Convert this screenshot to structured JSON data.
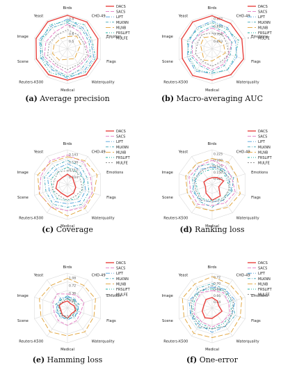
{
  "figure": {
    "legend_entries": [
      "DACS",
      "SACS",
      "LIFT",
      "MLKNN",
      "MLNB",
      "FRSLIFT",
      "MULFE"
    ],
    "axes": [
      "Birds",
      "CHD-49",
      "Emotions",
      "Flags",
      "Waterquality",
      "Medical",
      "Reuters-K500",
      "Scene",
      "Image",
      "Yeast"
    ],
    "axes_short": {
      "Emotions": "Emotion"
    }
  },
  "series_colors": {
    "DACS": "#e8413d",
    "SACS": "#e377c2",
    "LIFT": "#4a9fdc",
    "MLKNN": "#3aa3b5",
    "MLNB": "#e0a033",
    "FRSLIFT": "#22b0a0",
    "MULFE": "#7f7f7f"
  },
  "chart_data": [
    {
      "type": "radar",
      "caption_letter": "(a)",
      "caption_text": "Average precision",
      "rings": [
        "0.8",
        "0.7",
        "0.6",
        "0.5"
      ],
      "axis_label_overrides": {
        "Emotions": "Emotion"
      },
      "series": [
        {
          "name": "DACS",
          "values": [
            0.96,
            0.95,
            0.92,
            0.9,
            0.92,
            0.9,
            0.92,
            0.94,
            0.95,
            0.96
          ]
        },
        {
          "name": "SACS",
          "values": [
            0.7,
            0.6,
            0.55,
            0.65,
            0.6,
            0.7,
            0.6,
            0.7,
            0.65,
            0.6
          ]
        },
        {
          "name": "LIFT",
          "values": [
            0.85,
            0.75,
            0.7,
            0.8,
            0.8,
            0.85,
            0.75,
            0.8,
            0.85,
            0.8
          ]
        },
        {
          "name": "MLKNN",
          "values": [
            0.75,
            0.7,
            0.65,
            0.7,
            0.7,
            0.8,
            0.7,
            0.75,
            0.8,
            0.75
          ]
        },
        {
          "name": "MLNB",
          "values": [
            0.35,
            0.45,
            0.4,
            0.3,
            0.35,
            0.3,
            0.4,
            0.45,
            0.4,
            0.35
          ]
        },
        {
          "name": "FRSLIFT",
          "values": [
            0.8,
            0.85,
            0.75,
            0.85,
            0.85,
            0.8,
            0.85,
            0.82,
            0.8,
            0.85
          ]
        },
        {
          "name": "MULFE",
          "values": [
            0.55,
            0.5,
            0.5,
            0.6,
            0.55,
            0.6,
            0.55,
            0.6,
            0.55,
            0.5
          ]
        }
      ]
    },
    {
      "type": "radar",
      "caption_letter": "(b)",
      "caption_text": "Macro-averaging AUC",
      "rings": [
        "0.882",
        "0.819",
        "0.756",
        "0.693"
      ],
      "axis_label_overrides": {},
      "series": [
        {
          "name": "DACS",
          "values": [
            0.95,
            0.9,
            0.9,
            0.95,
            0.92,
            0.9,
            0.95,
            0.9,
            0.92,
            0.95
          ]
        },
        {
          "name": "SACS",
          "values": [
            0.6,
            0.55,
            0.6,
            0.5,
            0.55,
            0.6,
            0.55,
            0.6,
            0.6,
            0.55
          ]
        },
        {
          "name": "LIFT",
          "values": [
            0.8,
            0.75,
            0.7,
            0.75,
            0.75,
            0.7,
            0.8,
            0.75,
            0.7,
            0.75
          ]
        },
        {
          "name": "MLKNN",
          "values": [
            0.65,
            0.6,
            0.6,
            0.55,
            0.6,
            0.65,
            0.6,
            0.65,
            0.6,
            0.6
          ]
        },
        {
          "name": "MLNB",
          "values": [
            0.35,
            0.3,
            0.35,
            0.4,
            0.3,
            0.35,
            0.4,
            0.3,
            0.35,
            0.4
          ]
        },
        {
          "name": "FRSLIFT",
          "values": [
            0.75,
            0.7,
            0.8,
            0.7,
            0.75,
            0.7,
            0.75,
            0.7,
            0.75,
            0.7
          ]
        },
        {
          "name": "MULFE",
          "values": [
            0.45,
            0.5,
            0.45,
            0.5,
            0.45,
            0.5,
            0.45,
            0.5,
            0.45,
            0.5
          ]
        }
      ]
    },
    {
      "type": "radar",
      "caption_letter": "(c)",
      "caption_text": "Coverage",
      "rings": [
        "0.143",
        "0.130",
        "0.117",
        "0.104"
      ],
      "axis_label_overrides": {},
      "series": [
        {
          "name": "DACS",
          "values": [
            0.3,
            0.25,
            0.2,
            0.25,
            0.3,
            0.35,
            0.3,
            0.35,
            0.3,
            0.25
          ]
        },
        {
          "name": "SACS",
          "values": [
            0.85,
            0.8,
            0.7,
            0.75,
            0.8,
            0.75,
            0.8,
            0.85,
            0.8,
            0.85
          ]
        },
        {
          "name": "LIFT",
          "values": [
            0.6,
            0.55,
            0.5,
            0.55,
            0.6,
            0.55,
            0.6,
            0.55,
            0.6,
            0.55
          ]
        },
        {
          "name": "MLKNN",
          "values": [
            0.7,
            0.65,
            0.6,
            0.65,
            0.7,
            0.65,
            0.7,
            0.65,
            0.7,
            0.65
          ]
        },
        {
          "name": "MLNB",
          "values": [
            0.8,
            0.85,
            0.9,
            0.8,
            0.85,
            0.9,
            0.8,
            0.85,
            0.9,
            0.8
          ]
        },
        {
          "name": "FRSLIFT",
          "values": [
            0.5,
            0.45,
            0.5,
            0.45,
            0.5,
            0.45,
            0.5,
            0.45,
            0.5,
            0.45
          ]
        },
        {
          "name": "MULFE",
          "values": [
            0.4,
            0.45,
            0.4,
            0.45,
            0.4,
            0.45,
            0.4,
            0.45,
            0.4,
            0.45
          ]
        }
      ]
    },
    {
      "type": "radar",
      "caption_letter": "(d)",
      "caption_text": "Ranking loss",
      "rings": [
        "0.225",
        "0.200",
        "0.175",
        "0.150",
        "0.125"
      ],
      "axis_label_overrides": {},
      "series": [
        {
          "name": "DACS",
          "values": [
            0.2,
            0.25,
            0.35,
            0.2,
            0.4,
            0.45,
            0.3,
            0.2,
            0.25,
            0.2
          ]
        },
        {
          "name": "SACS",
          "values": [
            0.7,
            0.65,
            0.6,
            0.7,
            0.65,
            0.6,
            0.7,
            0.65,
            0.7,
            0.65
          ]
        },
        {
          "name": "LIFT",
          "values": [
            0.5,
            0.55,
            0.5,
            0.6,
            0.55,
            0.5,
            0.55,
            0.6,
            0.5,
            0.55
          ]
        },
        {
          "name": "MLKNN",
          "values": [
            0.6,
            0.55,
            0.65,
            0.6,
            0.55,
            0.65,
            0.6,
            0.55,
            0.6,
            0.65
          ]
        },
        {
          "name": "MLNB",
          "values": [
            0.75,
            0.8,
            0.75,
            0.85,
            0.8,
            0.75,
            0.8,
            0.75,
            0.8,
            0.75
          ]
        },
        {
          "name": "FRSLIFT",
          "values": [
            0.45,
            0.5,
            0.45,
            0.55,
            0.5,
            0.45,
            0.5,
            0.45,
            0.5,
            0.45
          ]
        },
        {
          "name": "MULFE",
          "values": [
            0.55,
            0.5,
            0.55,
            0.5,
            0.55,
            0.5,
            0.55,
            0.5,
            0.55,
            0.5
          ]
        }
      ]
    },
    {
      "type": "radar",
      "caption_letter": "(e)",
      "caption_text": "Hamming loss",
      "rings": [
        "1.08",
        "0.72",
        "0.36",
        "0.00"
      ],
      "axis_label_overrides": {
        "Emotions": "Emotion"
      },
      "series": [
        {
          "name": "DACS",
          "values": [
            0.2,
            0.15,
            0.2,
            0.25,
            0.2,
            0.3,
            0.25,
            0.2,
            0.25,
            0.2
          ]
        },
        {
          "name": "SACS",
          "values": [
            0.4,
            0.45,
            0.5,
            0.4,
            0.45,
            0.5,
            0.45,
            0.4,
            0.45,
            0.5
          ]
        },
        {
          "name": "LIFT",
          "values": [
            0.3,
            0.35,
            0.3,
            0.35,
            0.3,
            0.35,
            0.3,
            0.35,
            0.3,
            0.35
          ]
        },
        {
          "name": "MLKNN",
          "values": [
            0.35,
            0.3,
            0.35,
            0.3,
            0.35,
            0.3,
            0.35,
            0.3,
            0.35,
            0.3
          ]
        },
        {
          "name": "MLNB",
          "values": [
            0.85,
            0.8,
            0.85,
            0.8,
            0.85,
            0.8,
            0.85,
            0.8,
            0.85,
            0.8
          ]
        },
        {
          "name": "FRSLIFT",
          "values": [
            0.25,
            0.3,
            0.25,
            0.3,
            0.25,
            0.3,
            0.25,
            0.3,
            0.25,
            0.3
          ]
        },
        {
          "name": "MULFE",
          "values": [
            0.28,
            0.22,
            0.28,
            0.22,
            0.28,
            0.22,
            0.28,
            0.22,
            0.28,
            0.22
          ]
        }
      ]
    },
    {
      "type": "radar",
      "caption_letter": "(f)",
      "caption_text": "One-error",
      "rings": [
        "0.72",
        "0.70",
        "0.68",
        "0.66",
        "0.64"
      ],
      "axis_label_overrides": {},
      "series": [
        {
          "name": "DACS",
          "values": [
            0.3,
            0.25,
            0.2,
            0.3,
            0.25,
            0.3,
            0.35,
            0.3,
            0.25,
            0.3
          ]
        },
        {
          "name": "SACS",
          "values": [
            0.5,
            0.55,
            0.5,
            0.55,
            0.5,
            0.55,
            0.5,
            0.55,
            0.5,
            0.55
          ]
        },
        {
          "name": "LIFT",
          "values": [
            0.6,
            0.65,
            0.7,
            0.6,
            0.65,
            0.7,
            0.6,
            0.65,
            0.7,
            0.6
          ]
        },
        {
          "name": "MLKNN",
          "values": [
            0.7,
            0.65,
            0.6,
            0.7,
            0.65,
            0.6,
            0.7,
            0.65,
            0.6,
            0.7
          ]
        },
        {
          "name": "MLNB",
          "values": [
            0.9,
            0.85,
            0.9,
            0.85,
            0.9,
            0.85,
            0.9,
            0.85,
            0.9,
            0.85
          ]
        },
        {
          "name": "FRSLIFT",
          "values": [
            0.55,
            0.6,
            0.55,
            0.6,
            0.55,
            0.6,
            0.55,
            0.6,
            0.55,
            0.6
          ]
        },
        {
          "name": "MULFE",
          "values": [
            0.65,
            0.6,
            0.65,
            0.6,
            0.65,
            0.6,
            0.65,
            0.6,
            0.65,
            0.6
          ]
        }
      ]
    }
  ]
}
